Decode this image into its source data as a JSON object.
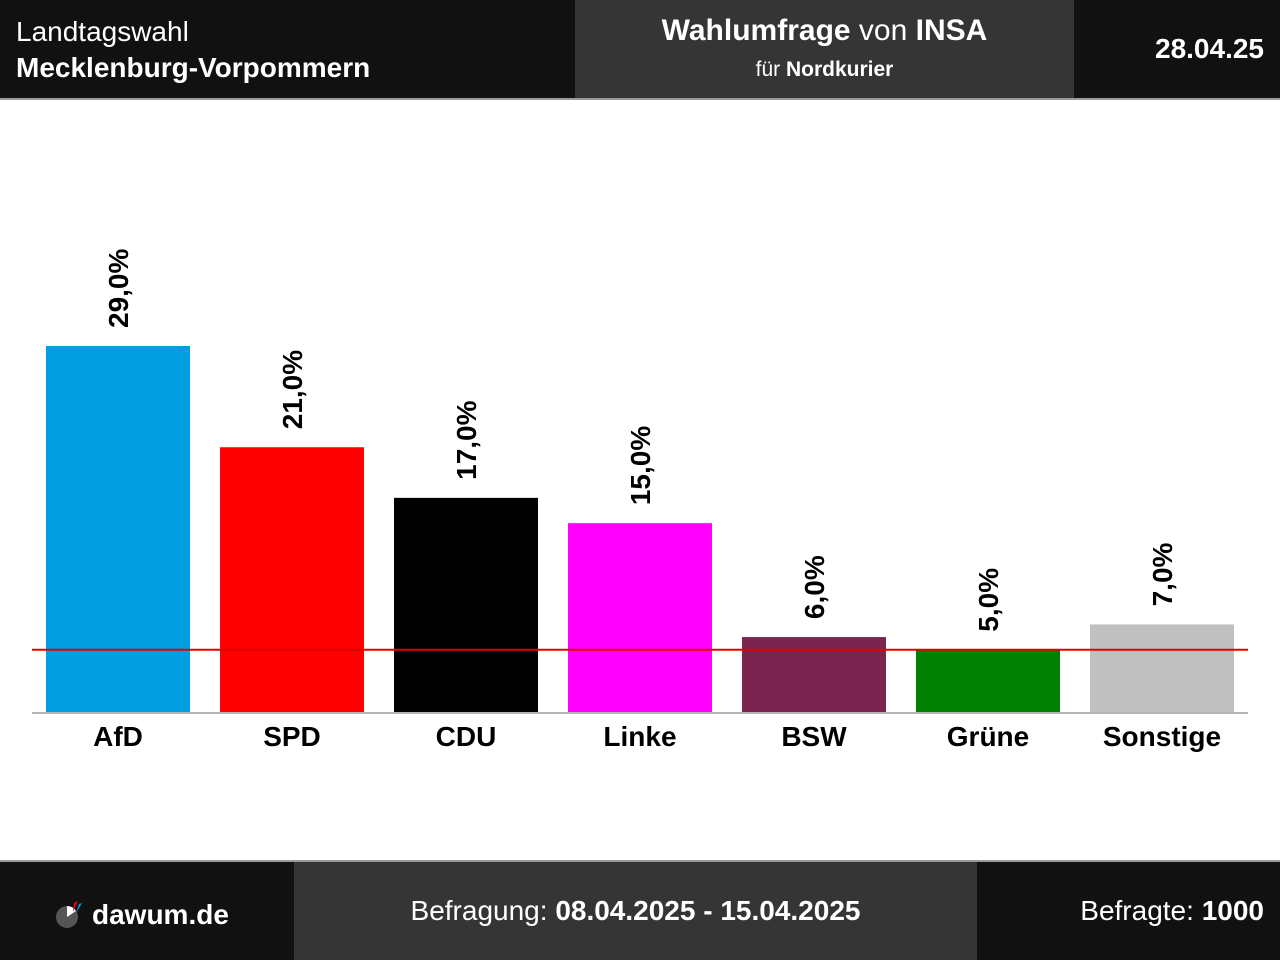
{
  "header": {
    "election_type": "Landtagswahl",
    "state": "Mecklenburg-Vorpommern",
    "poll_title_bold": "Wahlumfrage",
    "poll_title_mid": "von",
    "institute": "INSA",
    "client_prefix": "für",
    "client": "Nordkurier",
    "date": "28.04.25"
  },
  "footer": {
    "brand": "dawum.de",
    "period_label": "Befragung:",
    "period": "08.04.2025 - 15.04.2025",
    "respondents_label": "Befragte:",
    "respondents": "1000"
  },
  "chart_data": {
    "type": "bar",
    "categories": [
      "AfD",
      "SPD",
      "CDU",
      "Linke",
      "BSW",
      "Grüne",
      "Sonstige"
    ],
    "values": [
      29.0,
      21.0,
      17.0,
      15.0,
      6.0,
      5.0,
      7.0
    ],
    "value_labels": [
      "29,0%",
      "21,0%",
      "17,0%",
      "15,0%",
      "6,0%",
      "5,0%",
      "7,0%"
    ],
    "colors": [
      "#009ee0",
      "#ff0000",
      "#000000",
      "#ff00ff",
      "#7b2450",
      "#008000",
      "#c0c0c0"
    ],
    "threshold": 5.0,
    "threshold_color": "#e00000",
    "ylim": [
      0,
      29.0
    ]
  }
}
